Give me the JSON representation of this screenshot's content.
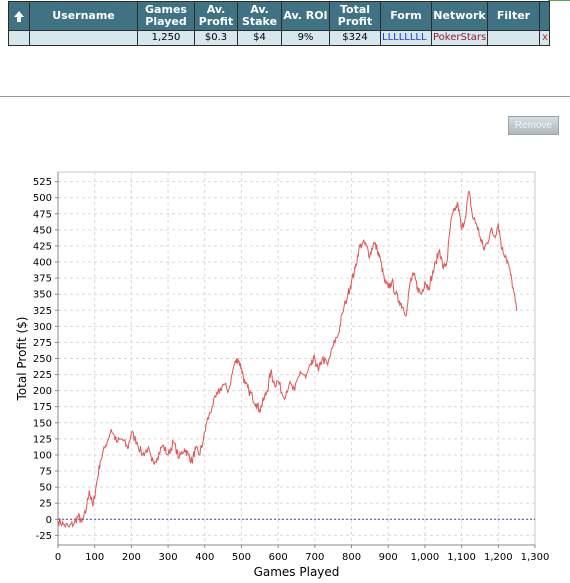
{
  "table": {
    "headers": {
      "username": "Username",
      "games_played": "Games Played",
      "av_profit": "Av. Profit",
      "av_stake": "Av. Stake",
      "av_roi": "Av. ROI",
      "total_profit": "Total Profit",
      "form": "Form",
      "network": "Network",
      "filter": "Filter"
    },
    "row": {
      "username": "",
      "games_played": "1,250",
      "av_profit": "$0.3",
      "av_stake": "$4",
      "av_roi": "9%",
      "total_profit": "$324",
      "form": "LLLLLLLL",
      "network": "PokerStars",
      "filter": "",
      "remove_mark": "x"
    }
  },
  "remove_button": {
    "label": "Remove"
  },
  "colors": {
    "header_bg": "#3f7282",
    "row_bg": "#d6e8ee",
    "line": "#e05555",
    "zero_line": "#3a4fb5"
  },
  "chart_data": {
    "type": "line",
    "title": "",
    "xlabel": "Games Played",
    "ylabel": "Total Profit ($)",
    "xlim": [
      0,
      1300
    ],
    "ylim": [
      -40,
      540
    ],
    "x_ticks": [
      0,
      100,
      200,
      300,
      400,
      500,
      600,
      700,
      800,
      900,
      1000,
      1100,
      1200,
      1300
    ],
    "x_tick_labels": [
      "0",
      "100",
      "200",
      "300",
      "400",
      "500",
      "600",
      "700",
      "800",
      "900",
      "1,000",
      "1,100",
      "1,200",
      "1,300"
    ],
    "y_ticks": [
      -25,
      0,
      25,
      50,
      75,
      100,
      125,
      150,
      175,
      200,
      225,
      250,
      275,
      300,
      325,
      350,
      375,
      400,
      425,
      450,
      475,
      500,
      525
    ],
    "y_tick_labels": [
      "-25",
      "0",
      "25",
      "50",
      "75",
      "100",
      "125",
      "150",
      "175",
      "200",
      "225",
      "250",
      "275",
      "300",
      "325",
      "350",
      "375",
      "400",
      "425",
      "450",
      "475",
      "500",
      "525"
    ],
    "grid": true,
    "zero_line": true,
    "series": [
      {
        "x": [
          0,
          15,
          30,
          45,
          55,
          65,
          75,
          85,
          95,
          105,
          115,
          130,
          145,
          160,
          175,
          190,
          200,
          215,
          230,
          245,
          255,
          270,
          285,
          300,
          315,
          330,
          345,
          355,
          365,
          375,
          385,
          395,
          405,
          420,
          435,
          450,
          465,
          480,
          490,
          500,
          510,
          520,
          530,
          540,
          550,
          560,
          570,
          580,
          590,
          600,
          615,
          630,
          645,
          660,
          675,
          690,
          700,
          710,
          720,
          735,
          750,
          765,
          775,
          790,
          800,
          810,
          820,
          830,
          840,
          850,
          860,
          870,
          880,
          890,
          900,
          910,
          920,
          930,
          940,
          950,
          960,
          970,
          980,
          990,
          1000,
          1010,
          1020,
          1030,
          1040,
          1050,
          1060,
          1070,
          1080,
          1090,
          1100,
          1110,
          1120,
          1130,
          1140,
          1150,
          1160,
          1170,
          1180,
          1190,
          1200,
          1210,
          1220,
          1230,
          1240,
          1250
        ],
        "y": [
          -2,
          -8,
          -12,
          -5,
          5,
          -5,
          10,
          45,
          20,
          55,
          90,
          115,
          140,
          120,
          125,
          110,
          135,
          120,
          100,
          110,
          90,
          95,
          115,
          100,
          120,
          95,
          110,
          100,
          90,
          110,
          100,
          120,
          150,
          175,
          195,
          210,
          200,
          240,
          250,
          235,
          210,
          200,
          190,
          180,
          170,
          185,
          200,
          230,
          210,
          215,
          190,
          210,
          200,
          230,
          220,
          240,
          250,
          230,
          250,
          240,
          270,
          290,
          320,
          350,
          370,
          390,
          420,
          430,
          425,
          410,
          430,
          420,
          400,
          370,
          360,
          370,
          350,
          340,
          330,
          320,
          370,
          380,
          360,
          350,
          370,
          360,
          380,
          400,
          420,
          390,
          400,
          460,
          480,
          490,
          450,
          470,
          510,
          470,
          460,
          440,
          420,
          430,
          450,
          440,
          460,
          420,
          410,
          390,
          360,
          324
        ]
      }
    ]
  }
}
